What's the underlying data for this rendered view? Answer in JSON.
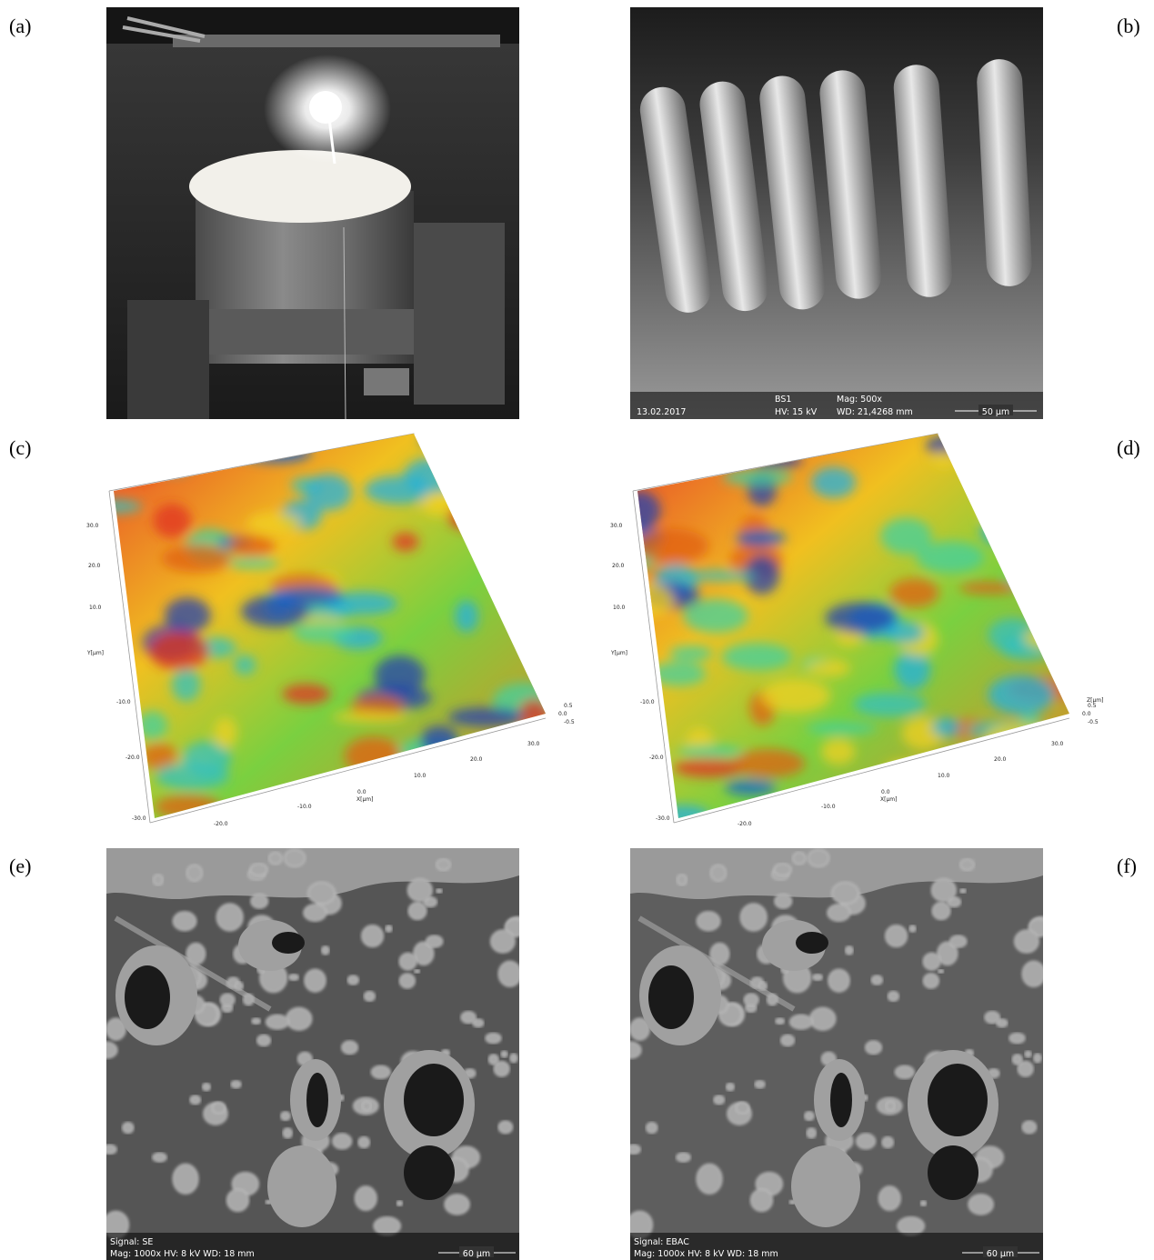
{
  "panels": [
    {
      "label": "(a)"
    },
    {
      "label": "(b)",
      "info_bar": {
        "date": "13.02.2017",
        "detector": "BS1",
        "hv": "HV: 15 kV",
        "mag": "Mag: 500x",
        "wd": "WD: 21,4268 mm",
        "scale": "50 µm"
      }
    },
    {
      "label": "(c)",
      "axes": {
        "y_ticks": [
          "30.0",
          "20.0",
          "10.0",
          "-10.0",
          "-20.0",
          "-30.0"
        ],
        "y_label": "Y[µm]",
        "x_ticks": [
          "-20.0",
          "-10.0",
          "0.0",
          "10.0",
          "20.0",
          "30.0"
        ],
        "x_label": "X[µm]",
        "z_ticks": [
          "0.5",
          "0.0",
          "-0.5"
        ]
      }
    },
    {
      "label": "(d)",
      "axes": {
        "y_ticks": [
          "30.0",
          "20.0",
          "10.0",
          "-10.0",
          "-20.0",
          "-30.0"
        ],
        "y_label": "Y[µm]",
        "x_ticks": [
          "-20.0",
          "-10.0",
          "0.0",
          "10.0",
          "20.0",
          "30.0"
        ],
        "x_label": "X[µm]",
        "z_label": "Z[µm]",
        "z_ticks": [
          "0.5",
          "0.0",
          "-0.5"
        ]
      }
    },
    {
      "label": "(e)",
      "info_bar": {
        "signal": "Signal: SE",
        "settings": "Mag: 1000x HV: 8 kV WD: 18 mm",
        "scale": "60 µm"
      }
    },
    {
      "label": "(f)",
      "info_bar": {
        "signal": "Signal: EBAC",
        "settings": "Mag: 1000x HV: 8 kV WD: 18 mm",
        "scale": "60 µm"
      }
    }
  ]
}
